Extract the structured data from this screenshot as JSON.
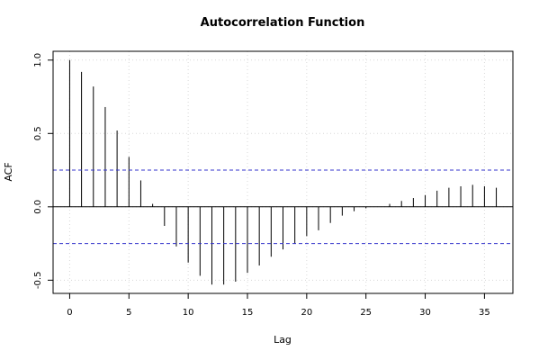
{
  "chart_data": {
    "type": "bar",
    "title": "Autocorrelation Function",
    "xlabel": "Lag",
    "ylabel": "ACF",
    "xlim": [
      -1.4,
      37.4
    ],
    "ylim": [
      -0.59,
      1.06
    ],
    "x_ticks": [
      0,
      5,
      10,
      15,
      20,
      25,
      30,
      35
    ],
    "y_ticks": [
      -0.5,
      0.0,
      0.5,
      1.0
    ],
    "y_tick_labels": [
      "-0.5",
      "0.0",
      "0.5",
      "1.0"
    ],
    "grid": true,
    "confidence_bound": 0.25,
    "colors": {
      "bars": "#000000",
      "confidence": "#3333cc",
      "grid": "#d8d8d8",
      "zero": "#000000"
    },
    "lags": [
      0,
      1,
      2,
      3,
      4,
      5,
      6,
      7,
      8,
      9,
      10,
      11,
      12,
      13,
      14,
      15,
      16,
      17,
      18,
      19,
      20,
      21,
      22,
      23,
      24,
      25,
      26,
      27,
      28,
      29,
      30,
      31,
      32,
      33,
      34,
      35,
      36
    ],
    "values": [
      1.0,
      0.92,
      0.82,
      0.68,
      0.52,
      0.34,
      0.18,
      0.02,
      -0.13,
      -0.27,
      -0.38,
      -0.47,
      -0.53,
      -0.53,
      -0.51,
      -0.45,
      -0.4,
      -0.34,
      -0.29,
      -0.25,
      -0.2,
      -0.16,
      -0.11,
      -0.06,
      -0.03,
      -0.01,
      0.0,
      0.02,
      0.04,
      0.06,
      0.08,
      0.11,
      0.13,
      0.14,
      0.15,
      0.14,
      0.13
    ]
  }
}
